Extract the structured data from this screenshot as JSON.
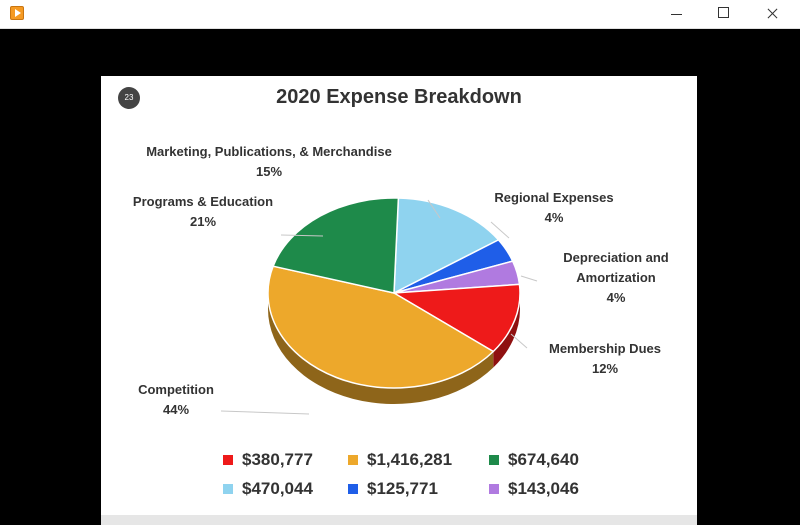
{
  "window": {
    "title": "",
    "icon": "play-icon",
    "controls": [
      "minimize-icon",
      "maximize-icon",
      "close-icon"
    ]
  },
  "slide": {
    "number": "23",
    "title": "2020 Expense Breakdown"
  },
  "chart_data": {
    "type": "pie",
    "title": "2020 Expense Breakdown",
    "slices": [
      {
        "label": "Marketing, Publications, & Merchandise",
        "pct_label": "15%",
        "percent": 15,
        "legend": "$470,044",
        "color": "#8fd3ef"
      },
      {
        "label": "Regional Expenses",
        "pct_label": "4%",
        "percent": 4,
        "legend": "$125,771",
        "color": "#1f5ee8"
      },
      {
        "label": "Depreciation and Amortization",
        "pct_label": "4%",
        "percent": 4,
        "legend": "$143,046",
        "color": "#b07ae0"
      },
      {
        "label": "Membership Dues",
        "pct_label": "12%",
        "percent": 12,
        "legend": "$380,777",
        "color": "#ee1a1a"
      },
      {
        "label": "Competition",
        "pct_label": "44%",
        "percent": 44,
        "legend": "$1,416,281",
        "color": "#eda82b"
      },
      {
        "label": "Programs & Education",
        "pct_label": "21%",
        "percent": 21,
        "legend": "$674,640",
        "color": "#1e8a4a"
      }
    ],
    "legend_order": [
      3,
      4,
      5,
      0,
      1,
      2
    ],
    "legend_placement": "bottom"
  }
}
